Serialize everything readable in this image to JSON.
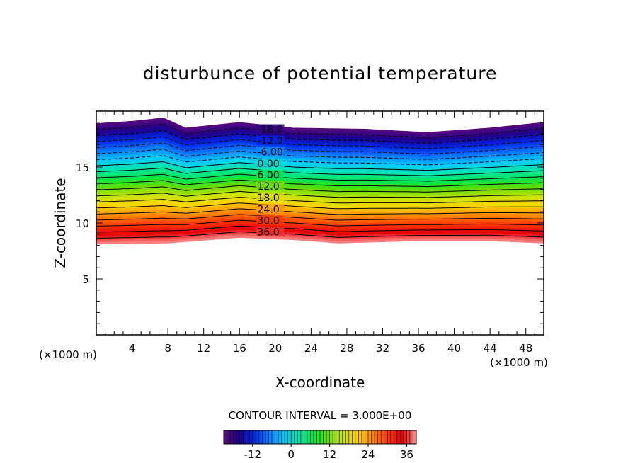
{
  "chart_data": {
    "type": "contour",
    "title": "disturbunce of potential temperature",
    "xlabel": "X-coordinate",
    "ylabel": "Z-coordinate",
    "x_unit_left": "(×1000 m)",
    "x_unit_right": "(×1000 m)",
    "xlim": [
      0,
      50
    ],
    "ylim": [
      0,
      20
    ],
    "x_ticks": [
      4,
      8,
      12,
      16,
      20,
      24,
      28,
      32,
      36,
      40,
      44,
      48
    ],
    "y_ticks": [
      5,
      10,
      15
    ],
    "contour_interval_text": "CONTOUR INTERVAL = 3.000E+00",
    "contour_interval": 3.0,
    "value_range": [
      -21,
      39
    ],
    "field_bottom_z": [
      [
        0,
        8.1
      ],
      [
        8,
        8.2
      ],
      [
        16,
        8.7
      ],
      [
        22,
        8.5
      ],
      [
        27,
        8.2
      ],
      [
        36,
        8.4
      ],
      [
        44,
        8.4
      ],
      [
        50,
        8.2
      ]
    ],
    "field_top_z": [
      [
        0,
        18.9
      ],
      [
        4,
        19.1
      ],
      [
        7.5,
        19.4
      ],
      [
        10,
        18.5
      ],
      [
        16,
        19.0
      ],
      [
        22,
        18.5
      ],
      [
        30,
        18.4
      ],
      [
        37,
        18.1
      ],
      [
        44,
        18.5
      ],
      [
        50,
        19.0
      ]
    ],
    "contour_labels": [
      {
        "text": "-18.0",
        "value": -18
      },
      {
        "text": "-12.0",
        "value": -12
      },
      {
        "text": "-6.00",
        "value": -6
      },
      {
        "text": "0.00",
        "value": 0
      },
      {
        "text": "6.00",
        "value": 6
      },
      {
        "text": "12.0",
        "value": 12
      },
      {
        "text": "18.0",
        "value": 18
      },
      {
        "text": "24.0",
        "value": 24
      },
      {
        "text": "30.0",
        "value": 30
      },
      {
        "text": "36.0",
        "value": 36
      }
    ],
    "colorbar_ticks": [
      "-12",
      "0",
      "12",
      "24",
      "36"
    ],
    "colorbar_range": [
      -21,
      39
    ]
  },
  "colors": {
    "background": "#ffffff",
    "frame": "#000000",
    "colormap": [
      "#5a0a7a",
      "#20008c",
      "#0028e6",
      "#0a78ff",
      "#00c8ff",
      "#00e6b4",
      "#00e650",
      "#64dc00",
      "#c8e600",
      "#ffd200",
      "#ff8c00",
      "#ff3c00",
      "#e60000",
      "#ff8c8c"
    ]
  }
}
